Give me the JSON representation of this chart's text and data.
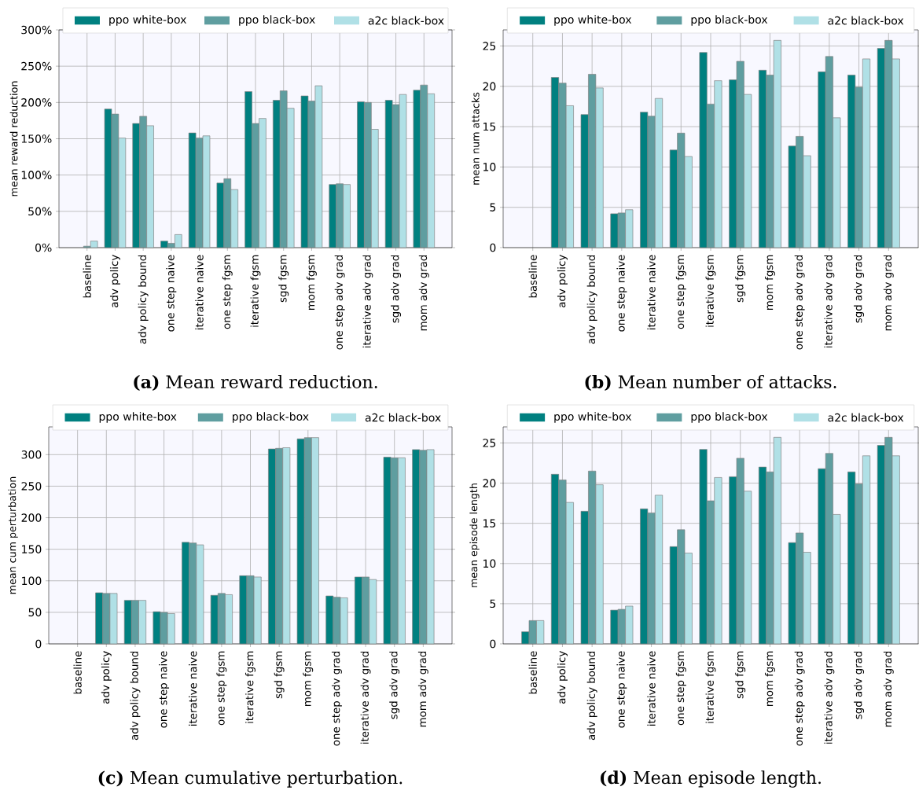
{
  "chart_data": [
    {
      "type": "bar",
      "title": "**(a)** Mean reward reduction.",
      "ylabel": "mean reward reduction",
      "categories": [
        "baseline",
        "adv policy",
        "adv policy bound",
        "one step naive",
        "iterative naive",
        "one step fgsm",
        "iterative fgsm",
        "sgd fgsm",
        "mom fgsm",
        "one step adv grad",
        "iterative adv grad",
        "sgd adv grad",
        "mom adv grad"
      ],
      "series": [
        {
          "name": "ppo white-box",
          "color": "#008080",
          "values": [
            null,
            191,
            171,
            9,
            158,
            89,
            215,
            203,
            209,
            87,
            201,
            203,
            217
          ]
        },
        {
          "name": "ppo black-box",
          "color": "#5f9ea0",
          "values": [
            2,
            184,
            181,
            6,
            151,
            95,
            171,
            216,
            202,
            88,
            200,
            197,
            224
          ]
        },
        {
          "name": "a2c black-box",
          "color": "#b0e0e6",
          "values": [
            9,
            151,
            168,
            18,
            154,
            80,
            178,
            192,
            223,
            87,
            163,
            211,
            212
          ]
        }
      ],
      "ylim": [
        0,
        300
      ],
      "yticks": [
        {
          "value": 0,
          "label": "0%"
        },
        {
          "value": 50,
          "label": "50%"
        },
        {
          "value": 100,
          "label": "100%"
        },
        {
          "value": 150,
          "label": "150%"
        },
        {
          "value": 200,
          "label": "200%"
        },
        {
          "value": 250,
          "label": "250%"
        },
        {
          "value": 300,
          "label": "300%"
        }
      ],
      "grid": true,
      "legend": "top"
    },
    {
      "type": "bar",
      "title": "**(b)** Mean number of attacks.",
      "ylabel": "mean num attacks",
      "categories": [
        "baseline",
        "adv policy",
        "adv policy bound",
        "one step naive",
        "iterative naive",
        "one step fgsm",
        "iterative fgsm",
        "sgd fgsm",
        "mom fgsm",
        "one step adv grad",
        "iterative adv grad",
        "sgd adv grad",
        "mom adv grad"
      ],
      "series": [
        {
          "name": "ppo white-box",
          "color": "#008080",
          "values": [
            null,
            21.1,
            16.5,
            4.2,
            16.8,
            12.1,
            24.2,
            20.8,
            22.0,
            12.6,
            21.8,
            21.4,
            24.7
          ]
        },
        {
          "name": "ppo black-box",
          "color": "#5f9ea0",
          "values": [
            null,
            20.4,
            21.5,
            4.3,
            16.3,
            14.2,
            17.8,
            23.1,
            21.4,
            13.8,
            23.7,
            19.9,
            25.7
          ]
        },
        {
          "name": "a2c black-box",
          "color": "#b0e0e6",
          "values": [
            null,
            17.6,
            19.8,
            4.7,
            18.5,
            11.3,
            20.7,
            19.0,
            25.7,
            11.4,
            16.1,
            23.4,
            23.4
          ]
        }
      ],
      "ylim": [
        0,
        27
      ],
      "yticks": [
        0,
        5,
        10,
        15,
        20,
        25
      ],
      "grid": true,
      "legend": "top"
    },
    {
      "type": "bar",
      "title": "**(c)** Mean cumulative perturbation.",
      "ylabel": "mean cum perturbation",
      "categories": [
        "baseline",
        "adv policy",
        "adv policy bound",
        "one step naive",
        "iterative naive",
        "one step fgsm",
        "iterative fgsm",
        "sgd fgsm",
        "mom fgsm",
        "one step adv grad",
        "iterative adv grad",
        "sgd adv grad",
        "mom adv grad"
      ],
      "series": [
        {
          "name": "ppo white-box",
          "color": "#008080",
          "values": [
            null,
            81,
            69,
            51,
            161,
            77,
            108,
            309,
            325,
            76,
            106,
            296,
            308
          ]
        },
        {
          "name": "ppo black-box",
          "color": "#5f9ea0",
          "values": [
            null,
            80,
            69,
            50,
            160,
            80,
            108,
            310,
            327,
            74,
            106,
            295,
            307
          ]
        },
        {
          "name": "a2c black-box",
          "color": "#b0e0e6",
          "values": [
            null,
            80,
            69,
            48,
            157,
            78,
            106,
            311,
            327,
            73,
            102,
            295,
            308
          ]
        }
      ],
      "ylim": [
        0,
        344
      ],
      "yticks": [
        0,
        50,
        100,
        150,
        200,
        250,
        300
      ],
      "grid": true,
      "legend": "top"
    },
    {
      "type": "bar",
      "title": "**(d)** Mean episode length.",
      "ylabel": "mean episode length",
      "categories": [
        "baseline",
        "adv policy",
        "adv policy bound",
        "one step naive",
        "iterative naive",
        "one step fgsm",
        "iterative fgsm",
        "sgd fgsm",
        "mom fgsm",
        "one step adv grad",
        "iterative adv grad",
        "sgd adv grad",
        "mom adv grad"
      ],
      "series": [
        {
          "name": "ppo white-box",
          "color": "#008080",
          "values": [
            1.5,
            21.1,
            16.5,
            4.2,
            16.8,
            12.1,
            24.2,
            20.8,
            22.0,
            12.6,
            21.8,
            21.4,
            24.7
          ]
        },
        {
          "name": "ppo black-box",
          "color": "#5f9ea0",
          "values": [
            2.9,
            20.4,
            21.5,
            4.3,
            16.3,
            14.2,
            17.8,
            23.1,
            21.4,
            13.8,
            23.7,
            19.9,
            25.7
          ]
        },
        {
          "name": "a2c black-box",
          "color": "#b0e0e6",
          "values": [
            2.9,
            17.6,
            19.8,
            4.7,
            18.5,
            11.3,
            20.7,
            19.0,
            25.7,
            11.4,
            16.1,
            23.4,
            23.4
          ]
        }
      ],
      "ylim": [
        0,
        27
      ],
      "yticks": [
        0,
        5,
        10,
        15,
        20,
        25
      ],
      "grid": true,
      "legend": "top"
    }
  ]
}
